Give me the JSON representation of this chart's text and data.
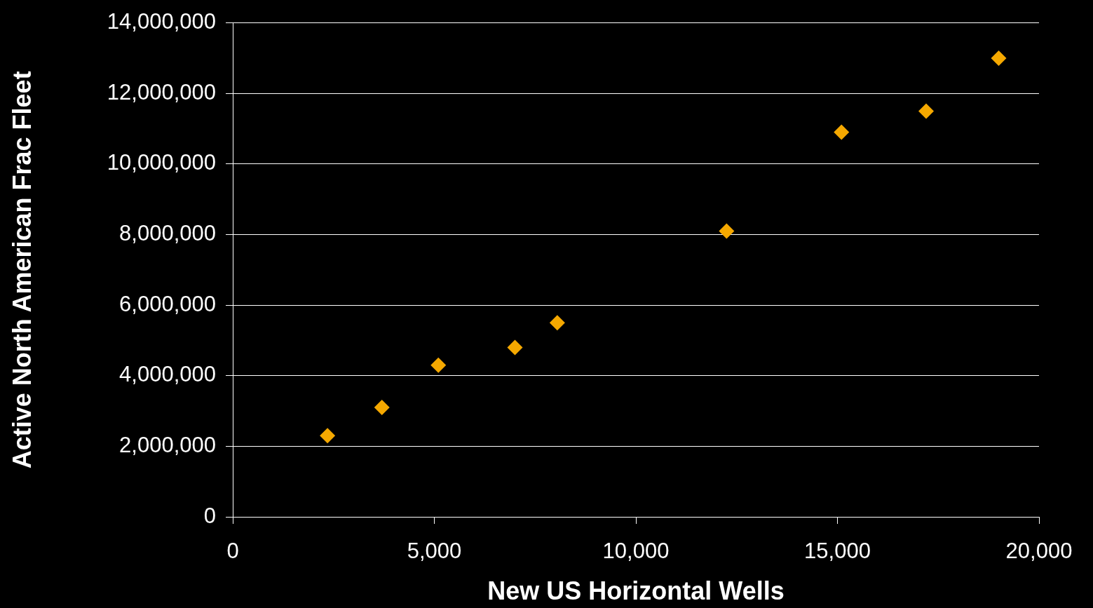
{
  "chart_data": {
    "type": "scatter",
    "xlabel": "New US Horizontal Wells",
    "ylabel": "Active North American Frac Fleet",
    "x": [
      2350,
      3700,
      5100,
      7000,
      8050,
      12250,
      15100,
      17200,
      19000
    ],
    "series": [
      {
        "color": "#f5a800",
        "values": [
          2300000,
          3100000,
          4300000,
          4800000,
          5500000,
          8100000,
          10900000,
          11500000,
          13000000
        ]
      }
    ],
    "xlim": [
      0,
      20000
    ],
    "xticks": [
      0,
      {
        "value": 5000,
        "label": "5,000"
      },
      {
        "value": 10000,
        "label": "10,000"
      },
      {
        "value": 15000,
        "label": "15,000"
      },
      {
        "value": 20000,
        "label": "20,000"
      }
    ],
    "ylim": [
      0,
      14000000
    ],
    "yticks": [
      0,
      {
        "value": 2000000,
        "label": "2,000,000"
      },
      {
        "value": 4000000,
        "label": "4,000,000"
      },
      {
        "value": 6000000,
        "label": "6,000,000"
      },
      {
        "value": 8000000,
        "label": "8,000,000"
      },
      {
        "value": 10000000,
        "label": "10,000,000"
      },
      {
        "value": 12000000,
        "label": "12,000,000"
      },
      {
        "value": 14000000,
        "label": "14,000,000"
      }
    ],
    "grid": "y",
    "marker": "diamond",
    "legend": false
  }
}
